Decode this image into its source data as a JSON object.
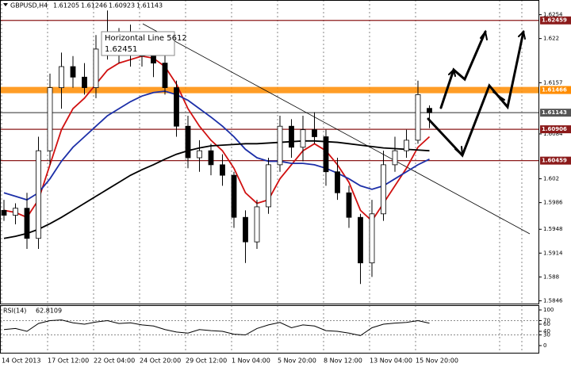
{
  "chart_data": {
    "type": "candlestick",
    "title": "GBPUSD,H4",
    "categories": [
      "14 Oct 2013",
      null,
      null,
      null,
      "17 Oct 12:00",
      null,
      null,
      null,
      "22 Oct 04:00",
      null,
      null,
      null,
      "24 Oct 20:00",
      null,
      null,
      null,
      "29 Oct 12:00",
      null,
      null,
      null,
      "1 Nov 04:00",
      null,
      null,
      null,
      "5 Nov 20:00",
      null,
      null,
      null,
      "8 Nov 12:00",
      null,
      null,
      null,
      "13 Nov 04:00",
      null,
      null,
      null,
      "15 Nov 20:00",
      null
    ],
    "open": [
      1.5975,
      1.5968,
      1.5978,
      1.5935,
      1.606,
      1.615,
      1.618,
      1.6165,
      1.615,
      1.6205,
      1.6215,
      1.62,
      1.621,
      1.6195,
      1.6185,
      1.615,
      1.6095,
      1.605,
      1.606,
      1.604,
      1.6025,
      1.5965,
      1.593,
      1.598,
      1.604,
      1.6095,
      1.6065,
      1.609,
      1.608,
      1.603,
      1.6,
      1.5965,
      1.59,
      1.597,
      1.604,
      1.606,
      1.6075,
      1.61205
    ],
    "high": [
      1.599,
      1.5985,
      1.6,
      1.608,
      1.617,
      1.62,
      1.6195,
      1.6185,
      1.6225,
      1.626,
      1.6235,
      1.624,
      1.623,
      1.6215,
      1.62,
      1.616,
      1.611,
      1.6075,
      1.607,
      1.6055,
      1.603,
      1.5975,
      1.599,
      1.605,
      1.611,
      1.6105,
      1.611,
      1.6115,
      1.609,
      1.605,
      1.601,
      1.597,
      1.599,
      1.606,
      1.608,
      1.609,
      1.616,
      1.61246
    ],
    "low": [
      1.596,
      1.5955,
      1.592,
      1.592,
      1.604,
      1.612,
      1.615,
      1.614,
      1.6135,
      1.619,
      1.6185,
      1.618,
      1.618,
      1.6165,
      1.614,
      1.608,
      1.6035,
      1.603,
      1.6025,
      1.601,
      1.595,
      1.59,
      1.592,
      1.597,
      1.603,
      1.605,
      1.6045,
      1.607,
      1.601,
      1.599,
      1.595,
      1.587,
      1.588,
      1.596,
      1.603,
      1.605,
      1.607,
      1.60923
    ],
    "close": [
      1.5968,
      1.5978,
      1.5935,
      1.606,
      1.615,
      1.618,
      1.6165,
      1.615,
      1.6205,
      1.6215,
      1.62,
      1.621,
      1.6195,
      1.6185,
      1.615,
      1.6095,
      1.605,
      1.606,
      1.604,
      1.6025,
      1.5965,
      1.593,
      1.598,
      1.604,
      1.6095,
      1.6065,
      1.609,
      1.608,
      1.603,
      1.6,
      1.5965,
      1.59,
      1.597,
      1.604,
      1.606,
      1.6075,
      1.614,
      1.61143
    ],
    "series": [
      {
        "color": "#d01010",
        "values": [
          1.5975,
          1.5972,
          1.5965,
          1.599,
          1.604,
          1.609,
          1.612,
          1.6135,
          1.6155,
          1.6175,
          1.6185,
          1.619,
          1.6195,
          1.6192,
          1.618,
          1.6155,
          1.612,
          1.6095,
          1.6075,
          1.606,
          1.6035,
          1.6,
          1.5985,
          1.599,
          1.602,
          1.604,
          1.606,
          1.607,
          1.606,
          1.604,
          1.6015,
          1.5975,
          1.596,
          1.5985,
          1.601,
          1.6035,
          1.6065,
          1.608
        ]
      },
      {
        "color": "#1c2fa8",
        "values": [
          1.6,
          1.5995,
          1.599,
          1.6,
          1.602,
          1.6045,
          1.6065,
          1.608,
          1.6095,
          1.611,
          1.612,
          1.613,
          1.6138,
          1.6143,
          1.6145,
          1.614,
          1.6132,
          1.612,
          1.6108,
          1.6095,
          1.608,
          1.6062,
          1.605,
          1.6045,
          1.6045,
          1.6042,
          1.6042,
          1.604,
          1.6035,
          1.6028,
          1.602,
          1.601,
          1.6005,
          1.601,
          1.602,
          1.603,
          1.604,
          1.6048
        ]
      },
      {
        "color": "#000000",
        "values": [
          1.5935,
          1.5938,
          1.5942,
          1.5948,
          1.5956,
          1.5965,
          1.5975,
          1.5985,
          1.5995,
          1.6005,
          1.6015,
          1.6025,
          1.6033,
          1.604,
          1.6048,
          1.6055,
          1.606,
          1.6064,
          1.6067,
          1.6068,
          1.6069,
          1.607,
          1.607,
          1.6071,
          1.6072,
          1.6073,
          1.6074,
          1.6074,
          1.6073,
          1.6072,
          1.607,
          1.6068,
          1.6066,
          1.6064,
          1.6063,
          1.6062,
          1.6061,
          1.606
        ]
      }
    ],
    "ylim": [
      1.5842,
      1.6275
    ],
    "yticks": [
      1.6254,
      1.622,
      1.6157,
      1.6084,
      1.602,
      1.5986,
      1.5948,
      1.5914,
      1.588,
      1.5846
    ],
    "levels": [
      {
        "value": 1.62459,
        "color": "#8b1a1a"
      },
      {
        "value": 1.61466,
        "color": "#ff8c00"
      },
      {
        "value": 1.61143,
        "color": "#555555"
      },
      {
        "value": 1.60906,
        "color": "#8b1a1a"
      },
      {
        "value": 1.60459,
        "color": "#8b1a1a"
      }
    ],
    "tooltip": {
      "title": "Horizontal Line 5612",
      "price": "1.62451"
    },
    "rsi": {
      "label": "RSI(14)",
      "color": "#000000",
      "values": [
        45,
        48,
        40,
        62,
        70,
        72,
        64,
        60,
        66,
        70,
        62,
        64,
        58,
        55,
        45,
        38,
        35,
        45,
        42,
        40,
        32,
        30,
        48,
        58,
        65,
        50,
        58,
        55,
        42,
        40,
        35,
        28,
        50,
        60,
        63,
        65,
        70,
        62.8109
      ],
      "ylim": [
        0,
        100
      ],
      "yticks": [
        100,
        70,
        60,
        40,
        30,
        0
      ]
    }
  }
}
